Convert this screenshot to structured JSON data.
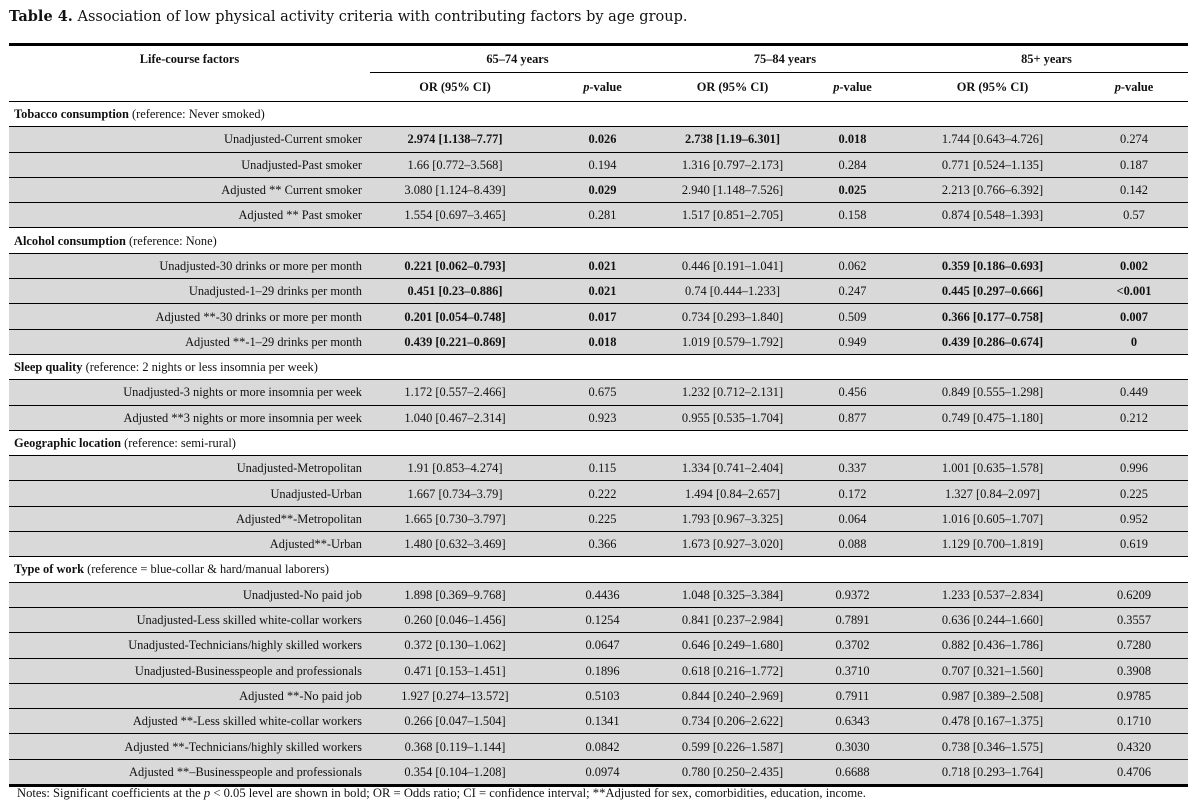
{
  "title": {
    "label": "Table 4.",
    "text": " Association of low physical activity criteria with contributing factors by age group."
  },
  "header": {
    "factor_col": "Life-course factors",
    "groups": [
      "65–74 years",
      "75–84 years",
      "85+ years"
    ],
    "or_label": "OR (95% CI)",
    "p_italic": "p",
    "p_suffix": "-value"
  },
  "sections": [
    {
      "name": "Tobacco consumption",
      "reference": " (reference: Never smoked)",
      "rows": [
        {
          "label": "Unadjusted-Current smoker",
          "cells": [
            [
              "2.974 [1.138–7.77]",
              true
            ],
            [
              "0.026",
              true
            ],
            [
              "2.738 [1.19–6.301]",
              true
            ],
            [
              "0.018",
              true
            ],
            [
              "1.744 [0.643–4.726]",
              false
            ],
            [
              "0.274",
              false
            ]
          ]
        },
        {
          "label": "Unadjusted-Past smoker",
          "cells": [
            [
              "1.66 [0.772–3.568]",
              false
            ],
            [
              "0.194",
              false
            ],
            [
              "1.316 [0.797–2.173]",
              false
            ],
            [
              "0.284",
              false
            ],
            [
              "0.771 [0.524–1.135]",
              false
            ],
            [
              "0.187",
              false
            ]
          ]
        },
        {
          "label": "Adjusted ** Current smoker",
          "cells": [
            [
              "3.080 [1.124–8.439]",
              false
            ],
            [
              "0.029",
              true
            ],
            [
              "2.940 [1.148–7.526]",
              false
            ],
            [
              "0.025",
              true
            ],
            [
              "2.213 [0.766–6.392]",
              false
            ],
            [
              "0.142",
              false
            ]
          ]
        },
        {
          "label": "Adjusted ** Past smoker",
          "cells": [
            [
              "1.554 [0.697–3.465]",
              false
            ],
            [
              "0.281",
              false
            ],
            [
              "1.517 [0.851–2.705]",
              false
            ],
            [
              "0.158",
              false
            ],
            [
              "0.874 [0.548–1.393]",
              false
            ],
            [
              "0.57",
              false
            ]
          ]
        }
      ]
    },
    {
      "name": "Alcohol consumption",
      "reference": " (reference: None)",
      "rows": [
        {
          "label": "Unadjusted-30 drinks or more per month",
          "cells": [
            [
              "0.221 [0.062–0.793]",
              true
            ],
            [
              "0.021",
              true
            ],
            [
              "0.446 [0.191–1.041]",
              false
            ],
            [
              "0.062",
              false
            ],
            [
              "0.359 [0.186–0.693]",
              true
            ],
            [
              "0.002",
              true
            ]
          ]
        },
        {
          "label": "Unadjusted-1–29 drinks per month",
          "cells": [
            [
              "0.451 [0.23–0.886]",
              true
            ],
            [
              "0.021",
              true
            ],
            [
              "0.74 [0.444–1.233]",
              false
            ],
            [
              "0.247",
              false
            ],
            [
              "0.445 [0.297–0.666]",
              true
            ],
            [
              "<0.001",
              true
            ]
          ]
        },
        {
          "label": "Adjusted **-30 drinks or more per month",
          "cells": [
            [
              "0.201 [0.054–0.748]",
              true
            ],
            [
              "0.017",
              true
            ],
            [
              "0.734 [0.293–1.840]",
              false
            ],
            [
              "0.509",
              false
            ],
            [
              "0.366 [0.177–0.758]",
              true
            ],
            [
              "0.007",
              true
            ]
          ]
        },
        {
          "label": "Adjusted **-1–29 drinks per month",
          "cells": [
            [
              "0.439 [0.221–0.869]",
              true
            ],
            [
              "0.018",
              true
            ],
            [
              "1.019 [0.579–1.792]",
              false
            ],
            [
              "0.949",
              false
            ],
            [
              "0.439 [0.286–0.674]",
              true
            ],
            [
              "0",
              true
            ]
          ]
        }
      ]
    },
    {
      "name": "Sleep quality",
      "reference": " (reference: 2 nights or less insomnia per week)",
      "rows": [
        {
          "label": "Unadjusted-3 nights or more insomnia per week",
          "cells": [
            [
              "1.172 [0.557–2.466]",
              false
            ],
            [
              "0.675",
              false
            ],
            [
              "1.232 [0.712–2.131]",
              false
            ],
            [
              "0.456",
              false
            ],
            [
              "0.849 [0.555–1.298]",
              false
            ],
            [
              "0.449",
              false
            ]
          ]
        },
        {
          "label": "Adjusted **3 nights or more insomnia per week",
          "cells": [
            [
              "1.040 [0.467–2.314]",
              false
            ],
            [
              "0.923",
              false
            ],
            [
              "0.955 [0.535–1.704]",
              false
            ],
            [
              "0.877",
              false
            ],
            [
              "0.749 [0.475–1.180]",
              false
            ],
            [
              "0.212",
              false
            ]
          ]
        }
      ]
    },
    {
      "name": "Geographic location",
      "reference": " (reference: semi-rural)",
      "rows": [
        {
          "label": "Unadjusted-Metropolitan",
          "cells": [
            [
              "1.91 [0.853–4.274]",
              false
            ],
            [
              "0.115",
              false
            ],
            [
              "1.334 [0.741–2.404]",
              false
            ],
            [
              "0.337",
              false
            ],
            [
              "1.001 [0.635–1.578]",
              false
            ],
            [
              "0.996",
              false
            ]
          ]
        },
        {
          "label": "Unadjusted-Urban",
          "cells": [
            [
              "1.667 [0.734–3.79]",
              false
            ],
            [
              "0.222",
              false
            ],
            [
              "1.494 [0.84–2.657]",
              false
            ],
            [
              "0.172",
              false
            ],
            [
              "1.327 [0.84–2.097]",
              false
            ],
            [
              "0.225",
              false
            ]
          ]
        },
        {
          "label": "Adjusted**-Metropolitan",
          "cells": [
            [
              "1.665 [0.730–3.797]",
              false
            ],
            [
              "0.225",
              false
            ],
            [
              "1.793 [0.967–3.325]",
              false
            ],
            [
              "0.064",
              false
            ],
            [
              "1.016 [0.605–1.707]",
              false
            ],
            [
              "0.952",
              false
            ]
          ]
        },
        {
          "label": "Adjusted**-Urban",
          "cells": [
            [
              "1.480 [0.632–3.469]",
              false
            ],
            [
              "0.366",
              false
            ],
            [
              "1.673 [0.927–3.020]",
              false
            ],
            [
              "0.088",
              false
            ],
            [
              "1.129 [0.700–1.819]",
              false
            ],
            [
              "0.619",
              false
            ]
          ]
        }
      ]
    },
    {
      "name": "Type of work",
      "reference": " (reference = blue-collar & hard/manual laborers)",
      "rows": [
        {
          "label": "Unadjusted-No paid job",
          "cells": [
            [
              "1.898 [0.369–9.768]",
              false
            ],
            [
              "0.4436",
              false
            ],
            [
              "1.048 [0.325–3.384]",
              false
            ],
            [
              "0.9372",
              false
            ],
            [
              "1.233 [0.537–2.834]",
              false
            ],
            [
              "0.6209",
              false
            ]
          ]
        },
        {
          "label": "Unadjusted-Less skilled white-collar workers",
          "cells": [
            [
              "0.260 [0.046–1.456]",
              false
            ],
            [
              "0.1254",
              false
            ],
            [
              "0.841 [0.237–2.984]",
              false
            ],
            [
              "0.7891",
              false
            ],
            [
              "0.636 [0.244–1.660]",
              false
            ],
            [
              "0.3557",
              false
            ]
          ]
        },
        {
          "label": "Unadjusted-Technicians/highly skilled workers",
          "cells": [
            [
              "0.372 [0.130–1.062]",
              false
            ],
            [
              "0.0647",
              false
            ],
            [
              "0.646 [0.249–1.680]",
              false
            ],
            [
              "0.3702",
              false
            ],
            [
              "0.882 [0.436–1.786]",
              false
            ],
            [
              "0.7280",
              false
            ]
          ]
        },
        {
          "label": "Unadjusted-Businesspeople and professionals",
          "cells": [
            [
              "0.471 [0.153–1.451]",
              false
            ],
            [
              "0.1896",
              false
            ],
            [
              "0.618 [0.216–1.772]",
              false
            ],
            [
              "0.3710",
              false
            ],
            [
              "0.707 [0.321–1.560]",
              false
            ],
            [
              "0.3908",
              false
            ]
          ]
        },
        {
          "label": "Adjusted **-No paid job",
          "cells": [
            [
              "1.927 [0.274–13.572]",
              false
            ],
            [
              "0.5103",
              false
            ],
            [
              "0.844 [0.240–2.969]",
              false
            ],
            [
              "0.7911",
              false
            ],
            [
              "0.987 [0.389–2.508]",
              false
            ],
            [
              "0.9785",
              false
            ]
          ]
        },
        {
          "label": "Adjusted **-Less skilled white-collar workers",
          "cells": [
            [
              "0.266 [0.047–1.504]",
              false
            ],
            [
              "0.1341",
              false
            ],
            [
              "0.734 [0.206–2.622]",
              false
            ],
            [
              "0.6343",
              false
            ],
            [
              "0.478 [0.167–1.375]",
              false
            ],
            [
              "0.1710",
              false
            ]
          ]
        },
        {
          "label": "Adjusted **-Technicians/highly skilled workers",
          "cells": [
            [
              "0.368 [0.119–1.144]",
              false
            ],
            [
              "0.0842",
              false
            ],
            [
              "0.599 [0.226–1.587]",
              false
            ],
            [
              "0.3030",
              false
            ],
            [
              "0.738 [0.346–1.575]",
              false
            ],
            [
              "0.4320",
              false
            ]
          ]
        },
        {
          "label": "Adjusted **–Businesspeople and professionals",
          "cells": [
            [
              "0.354 [0.104–1.208]",
              false
            ],
            [
              "0.0974",
              false
            ],
            [
              "0.780 [0.250–2.435]",
              false
            ],
            [
              "0.6688",
              false
            ],
            [
              "0.718 [0.293–1.764]",
              false
            ],
            [
              "0.4706",
              false
            ]
          ]
        }
      ]
    }
  ],
  "notes": {
    "pre": "Notes: Significant coefficients at the ",
    "p": "p",
    "post": " < 0.05 level are shown in bold; OR = Odds ratio; CI = confidence interval; **Adjusted for sex, comorbidities, education, income."
  }
}
